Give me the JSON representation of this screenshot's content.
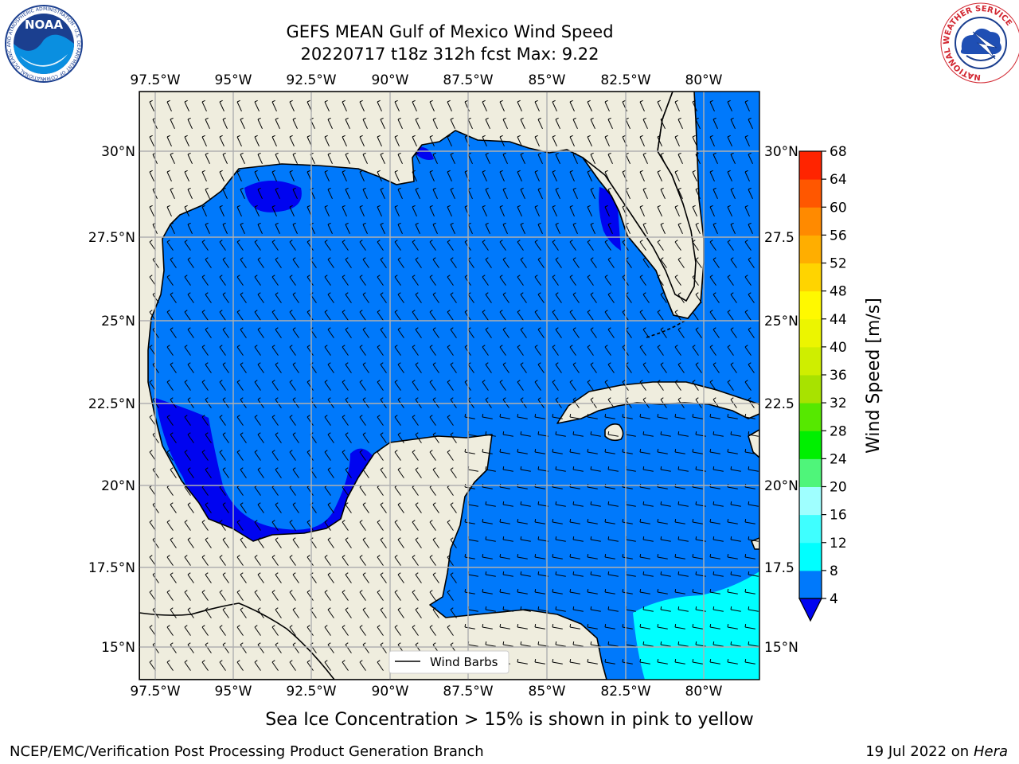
{
  "title": {
    "line1": "GEFS MEAN Gulf of Mexico Wind Speed",
    "line2": "20220717 t18z 312h fcst   Max: 9.22"
  },
  "map": {
    "lon_ticks": [
      "97.5°W",
      "95°W",
      "92.5°W",
      "90°W",
      "87.5°W",
      "85°W",
      "82.5°W",
      "80°W"
    ],
    "lat_ticks_left": [
      "30°N",
      "27.5°N",
      "25°N",
      "22.5°N",
      "20°N",
      "17.5°N",
      "15°N"
    ],
    "lat_ticks_right": [
      "30°N",
      "27.5",
      "25°N",
      "22.5",
      "20°N",
      "17.5",
      "15°N"
    ],
    "legend_label": "Wind Barbs",
    "colors": {
      "land": "#efedde",
      "wind_4_8": "#0079fb",
      "wind_lt_4": "#0004f0",
      "wind_8_12": "#00ffff",
      "grid": "#b0b0b0"
    }
  },
  "colorbar": {
    "label": "Wind Speed [m/s]",
    "ticks": [
      "4",
      "8",
      "12",
      "16",
      "20",
      "24",
      "28",
      "32",
      "36",
      "40",
      "44",
      "48",
      "52",
      "56",
      "60",
      "64",
      "68"
    ],
    "colors": [
      "#0079fb",
      "#00ffff",
      "#3fffff",
      "#9fffff",
      "#4ff57a",
      "#00f000",
      "#56e800",
      "#a8e200",
      "#cfee00",
      "#ecf500",
      "#fff900",
      "#ffd400",
      "#ffae00",
      "#ff8a00",
      "#ff5700",
      "#ff2400"
    ],
    "under_color": "#0004f0"
  },
  "logos": {
    "noaa_text": "NOAA",
    "noaa_ring": "NATIONAL OCEANIC AND ATMOSPHERIC ADMINISTRATION · U.S. DEPARTMENT OF COMMERCE",
    "nws_ring": "NATIONAL WEATHER SERVICE"
  },
  "footer": {
    "note": "Sea Ice Concentration > 15% is shown in pink to yellow",
    "left": "NCEP/EMC/Verification Post Processing Product Generation Branch",
    "date": "19 Jul 2022 on ",
    "machine": "Hera"
  }
}
